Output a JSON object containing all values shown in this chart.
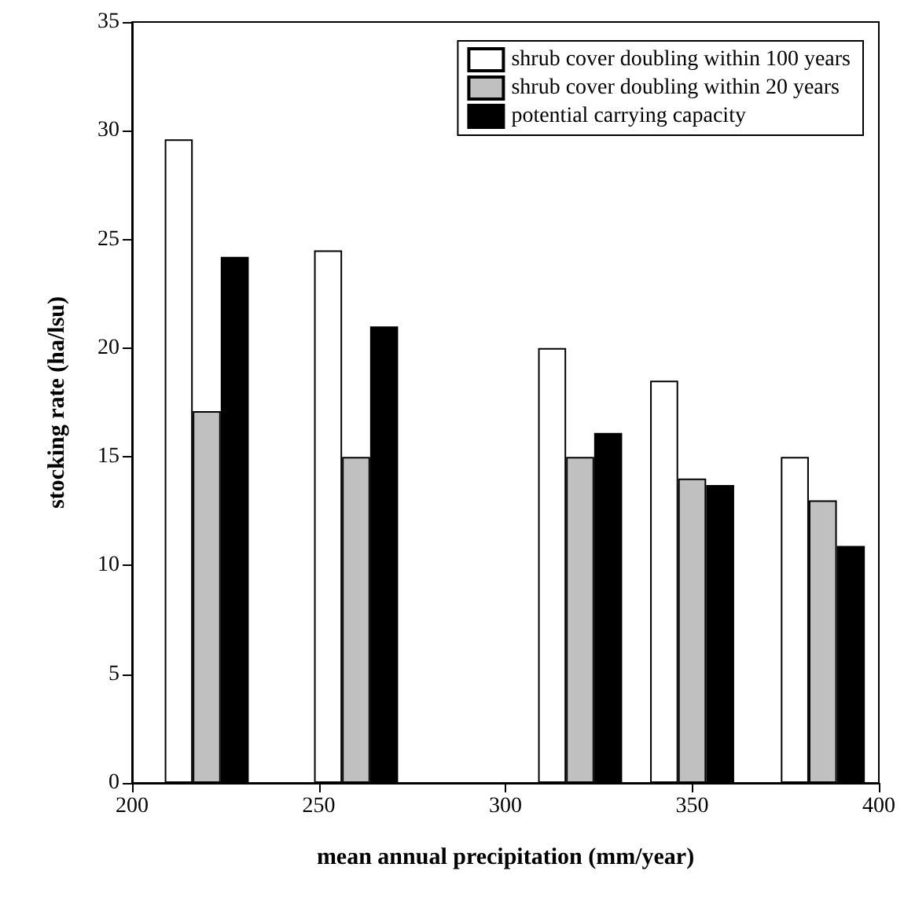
{
  "chart_data": {
    "type": "bar",
    "xlabel": "mean annual precipitation (mm/year)",
    "ylabel": "stocking rate (ha/lsu)",
    "xlim": [
      200,
      400
    ],
    "xticks": [
      200,
      250,
      300,
      350,
      400
    ],
    "ylim": [
      0,
      35
    ],
    "yticks": [
      0,
      5,
      10,
      15,
      20,
      25,
      30,
      35
    ],
    "legend": "top right",
    "grid": false,
    "series": [
      {
        "name": "shrub cover doubling within 100 years",
        "color": "#ffffff",
        "x": [
          212.5,
          252.5,
          312.5,
          342.5,
          377.5
        ],
        "values": [
          29.6,
          24.5,
          20.0,
          18.5,
          15.0
        ]
      },
      {
        "name": "shrub cover doubling within 20 years",
        "color": "#c0c0c0",
        "x": [
          220,
          260,
          320,
          350,
          385
        ],
        "values": [
          17.1,
          15.0,
          15.0,
          14.0,
          13.0
        ]
      },
      {
        "name": "potential carrying capacity",
        "color": "#000000",
        "x": [
          227.5,
          267.5,
          327.5,
          357.5,
          392.5
        ],
        "values": [
          24.2,
          21.0,
          16.1,
          13.7,
          10.9
        ]
      }
    ]
  }
}
